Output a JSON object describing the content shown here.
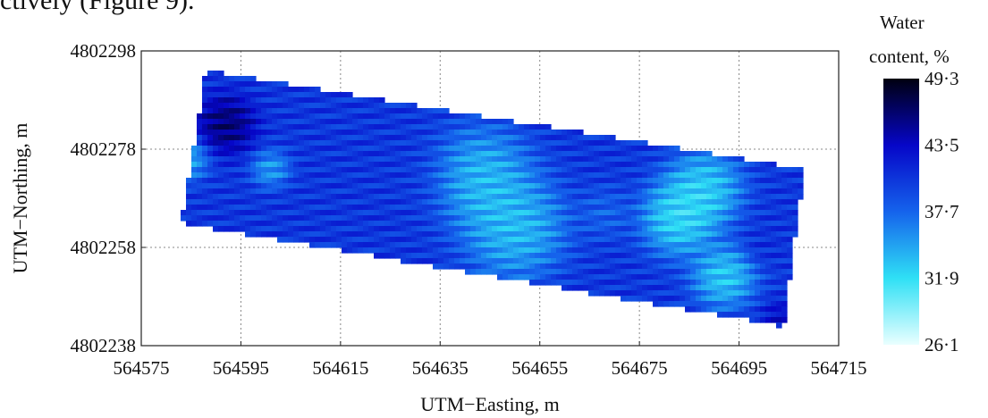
{
  "header_snippet": "ctively (Figure 9).",
  "chart_data": {
    "type": "heatmap",
    "title": "",
    "xlabel": "UTM−Easting, m",
    "ylabel": "UTM−Northing, m",
    "xlim": [
      564575,
      564715
    ],
    "ylim": [
      4802238,
      4802298
    ],
    "x_ticks": [
      "564575",
      "564595",
      "564615",
      "564635",
      "564655",
      "564675",
      "564695",
      "564715"
    ],
    "y_ticks": [
      "4802238",
      "4802258",
      "4802278",
      "4802298"
    ],
    "grid": true,
    "field_corners": [
      [
        564588,
        4802294
      ],
      [
        564708,
        4802274
      ],
      [
        564704,
        4802242
      ],
      [
        564583,
        4802263
      ]
    ],
    "colorbar": {
      "title_line1": "Water",
      "title_line2": "content, %",
      "ticks": [
        "49·3",
        "43·5",
        "37·7",
        "31·9",
        "26·1"
      ],
      "min": 26.1,
      "max": 49.3,
      "colors": [
        "#eaffff",
        "#2fe0f5",
        "#1563ec",
        "#0606c8",
        "#000010"
      ]
    },
    "hotspots": [
      {
        "x": 564592,
        "y": 4802283,
        "value": 48.5,
        "extent": 4.5
      },
      {
        "x": 564584,
        "y": 4802276,
        "value": 32.0,
        "extent": 3.5
      },
      {
        "x": 564601,
        "y": 4802274,
        "value": 33.0,
        "extent": 3.0
      },
      {
        "x": 564625,
        "y": 4802272,
        "value": 40.5,
        "extent": 10.0
      },
      {
        "x": 564643,
        "y": 4802272,
        "value": 31.0,
        "extent": 8.0
      },
      {
        "x": 564650,
        "y": 4802262,
        "value": 31.0,
        "extent": 8.0
      },
      {
        "x": 564668,
        "y": 4802265,
        "value": 37.0,
        "extent": 4.0
      },
      {
        "x": 564683,
        "y": 4802264,
        "value": 29.0,
        "extent": 6.0
      },
      {
        "x": 564692,
        "y": 4802252,
        "value": 30.0,
        "extent": 5.0
      },
      {
        "x": 564700,
        "y": 4802258,
        "value": 41.0,
        "extent": 3.0
      },
      {
        "x": 564703,
        "y": 4802244,
        "value": 44.0,
        "extent": 2.5
      },
      {
        "x": 564688,
        "y": 4802270,
        "value": 30.0,
        "extent": 6.0
      }
    ]
  }
}
